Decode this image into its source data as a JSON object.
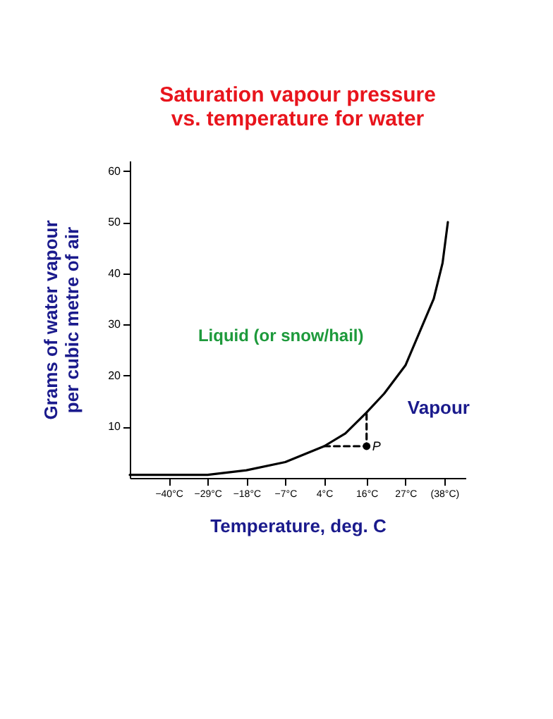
{
  "chart_data": {
    "type": "line",
    "title": "Saturation vapour pressure vs. temperature for water",
    "xlabel": "Temperature, deg. C",
    "ylabel": "Grams of water vapour per cubic metre of air",
    "xlim": [
      -51,
      44
    ],
    "ylim": [
      0,
      62
    ],
    "xticks": [
      {
        "value": -40,
        "label": "−40°C"
      },
      {
        "value": -29,
        "label": "−29°C"
      },
      {
        "value": -18,
        "label": "−18°C"
      },
      {
        "value": -7,
        "label": "−7°C"
      },
      {
        "value": 4,
        "label": "4°C"
      },
      {
        "value": 16,
        "label": "16°C"
      },
      {
        "value": 27,
        "label": "27°C"
      },
      {
        "value": 38,
        "label": "(38°C)"
      }
    ],
    "yticks": [
      10,
      20,
      30,
      40,
      50,
      60
    ],
    "marker": "none",
    "series": [
      {
        "color": "#000000",
        "line_style": "solid",
        "x": [
          -51,
          -40,
          -29,
          -18,
          -7,
          4,
          10,
          16,
          21,
          27,
          31,
          35,
          37.5,
          39
        ],
        "values": [
          0.6,
          0.6,
          0.6,
          1.5,
          3.1,
          6.2,
          8.7,
          12.8,
          16.5,
          22,
          28.5,
          35,
          42,
          50
        ]
      },
      {
        "color": "#000000",
        "line_style": "dashed",
        "x": [
          4,
          16,
          16
        ],
        "values": [
          6.2,
          6.2,
          12.8
        ]
      },
      {
        "type": "scatter",
        "color": "#000000",
        "marker": "circle",
        "x": [
          16
        ],
        "values": [
          6.2
        ]
      }
    ],
    "annotations": [
      "Liquid (or snow/hail)",
      "Vapour",
      {
        "text": "P",
        "x": 16,
        "y": 6.2
      }
    ]
  }
}
